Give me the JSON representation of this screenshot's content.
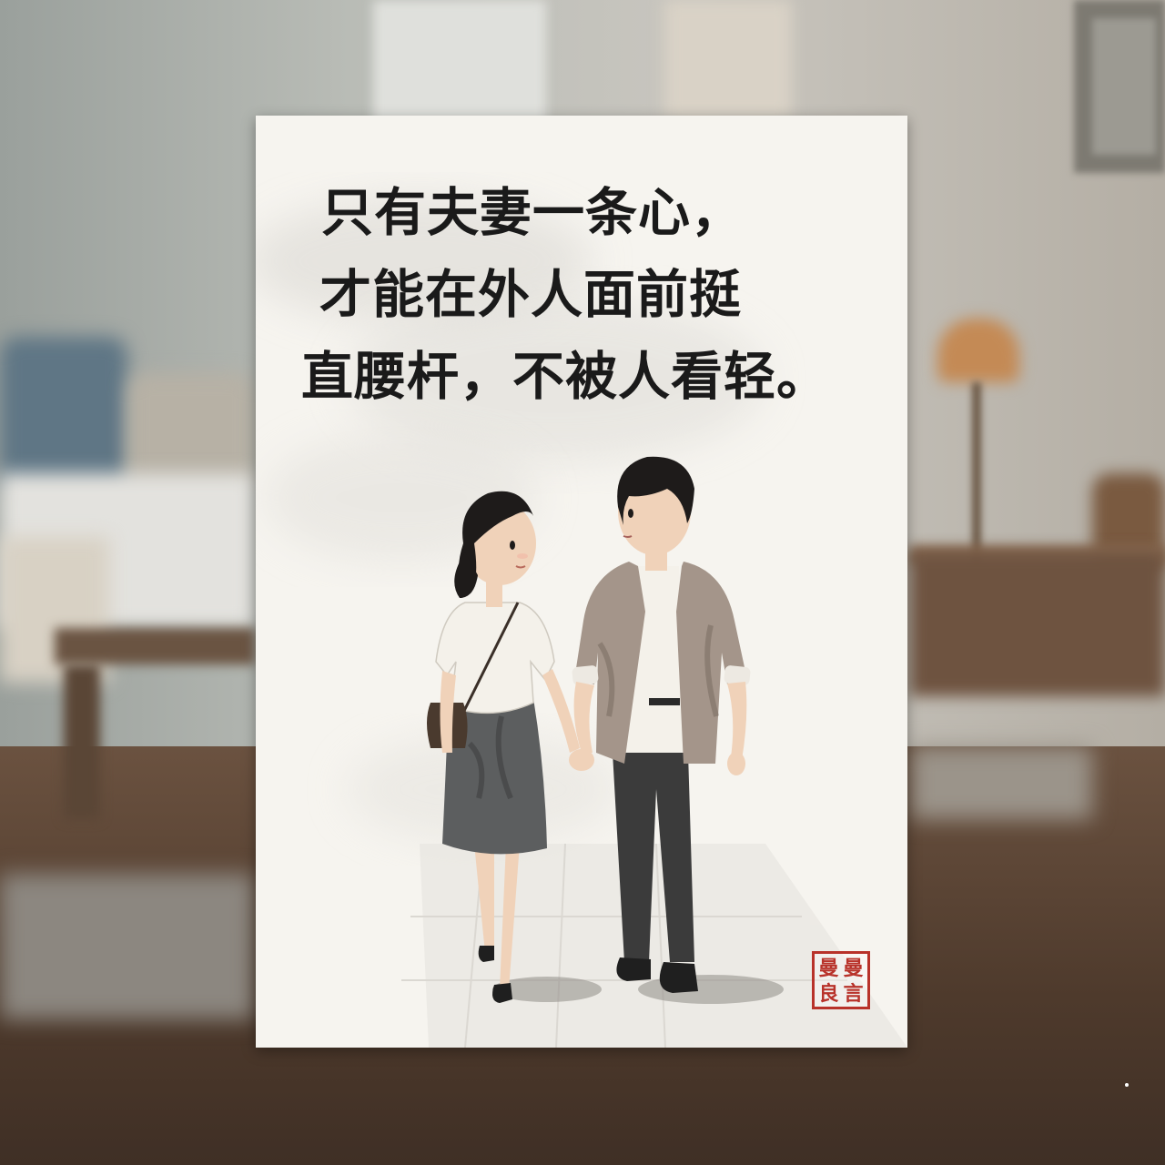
{
  "poster": {
    "quote_lines": [
      "只有夫妻一条心，",
      "才能在外人面前挺",
      "直腰杆，不被人看轻。"
    ],
    "seal_chars": [
      "曼",
      "曼",
      "良",
      "言"
    ]
  },
  "colors": {
    "ink": "#1a1a1a",
    "paper": "#f6f4ef",
    "seal_red": "#b8322a"
  }
}
